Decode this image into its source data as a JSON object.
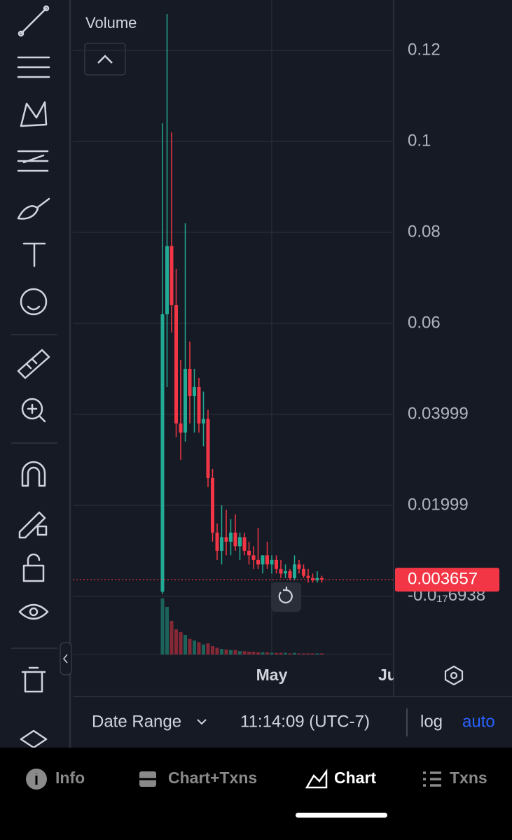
{
  "chart_data": {
    "type": "candlestick",
    "legend": "Volume",
    "ylim": [
      -0.0128,
      0.1311
    ],
    "yticks": [
      {
        "value": -6.938e-18,
        "label": "-0.0₁₇6938"
      },
      0.01999,
      0.03999,
      0.06,
      0.08,
      0.1,
      0.12
    ],
    "last_price": 0.003657,
    "up_color": "#22ab94",
    "down_color": "#f23645",
    "grid": true,
    "categories": [
      null,
      null,
      null,
      null,
      null,
      null,
      null,
      null,
      null,
      null,
      null,
      null,
      null,
      null,
      null,
      null,
      null,
      null,
      null,
      null,
      null,
      null,
      null,
      null,
      "May",
      null,
      null,
      null,
      null,
      null,
      null,
      null,
      null,
      null,
      null,
      null
    ],
    "clipped_label": "Ju",
    "open": [
      0.001,
      0.062,
      0.077,
      0.064,
      0.038,
      0.036,
      0.05,
      0.044,
      0.046,
      0.038,
      0.039,
      0.026,
      0.014,
      0.01,
      0.013,
      0.012,
      0.014,
      0.011,
      0.013,
      0.01,
      0.009,
      0.008,
      0.007,
      0.009,
      0.007,
      0.008,
      0.006,
      0.005,
      0.0055,
      0.004,
      0.007,
      0.006,
      0.0045,
      0.004,
      0.0035,
      0.004
    ],
    "high": [
      0.104,
      0.128,
      0.102,
      0.072,
      0.052,
      0.082,
      0.056,
      0.05,
      0.048,
      0.045,
      0.041,
      0.028,
      0.016,
      0.02,
      0.019,
      0.017,
      0.018,
      0.014,
      0.014,
      0.012,
      0.011,
      0.015,
      0.009,
      0.012,
      0.009,
      0.009,
      0.008,
      0.007,
      0.006,
      0.009,
      0.008,
      0.007,
      0.006,
      0.005,
      0.0055,
      0.0045
    ],
    "low": [
      0.0005,
      0.046,
      0.058,
      0.035,
      0.03,
      0.034,
      0.038,
      0.036,
      0.036,
      0.033,
      0.024,
      0.012,
      0.008,
      0.007,
      0.009,
      0.009,
      0.01,
      0.008,
      0.009,
      0.007,
      0.006,
      0.006,
      0.005,
      0.006,
      0.005,
      0.005,
      0.004,
      0.004,
      0.0035,
      0.0035,
      0.005,
      0.004,
      0.003,
      0.003,
      0.003,
      0.003
    ],
    "close": [
      0.062,
      0.077,
      0.064,
      0.038,
      0.036,
      0.05,
      0.044,
      0.046,
      0.038,
      0.039,
      0.026,
      0.014,
      0.01,
      0.013,
      0.012,
      0.014,
      0.011,
      0.013,
      0.01,
      0.009,
      0.008,
      0.007,
      0.009,
      0.007,
      0.008,
      0.006,
      0.005,
      0.0055,
      0.004,
      0.007,
      0.006,
      0.0045,
      0.004,
      0.0035,
      0.004,
      0.003657
    ],
    "volume": [
      100,
      85,
      60,
      45,
      40,
      35,
      28,
      25,
      22,
      18,
      20,
      15,
      12,
      10,
      9,
      8,
      8,
      6,
      6,
      5,
      5,
      4,
      4,
      4,
      3,
      3,
      3,
      3,
      2,
      3,
      2,
      2,
      2,
      2,
      2,
      2
    ]
  },
  "bottom_bar": {
    "date_range": "Date Range",
    "time": "11:14:09 (UTC-7)",
    "log": "log",
    "auto": "auto"
  },
  "tabs": [
    "Info",
    "Chart+Txns",
    "Chart",
    "Txns"
  ]
}
